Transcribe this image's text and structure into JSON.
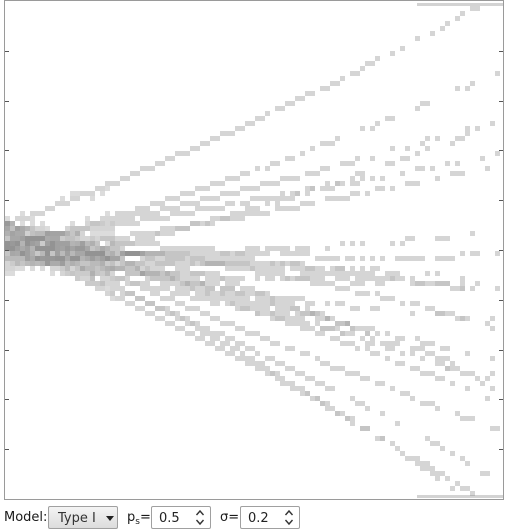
{
  "plot": {
    "series_count": 24,
    "y_ticks": 10,
    "shade_color": "#808080",
    "frame_color": "#9a9a9a"
  },
  "controls": {
    "model_label": "Model:",
    "model_value": "Type I",
    "ps_label_main": "p",
    "ps_label_sub": "s",
    "ps_label_eq": "=",
    "ps_value": "0.5",
    "sigma_label": "σ=",
    "sigma_value": "0.2"
  },
  "icons": {
    "select_arrow": "chevron-down-icon",
    "spin_up": "chevron-up-icon",
    "spin_down": "chevron-down-icon"
  }
}
